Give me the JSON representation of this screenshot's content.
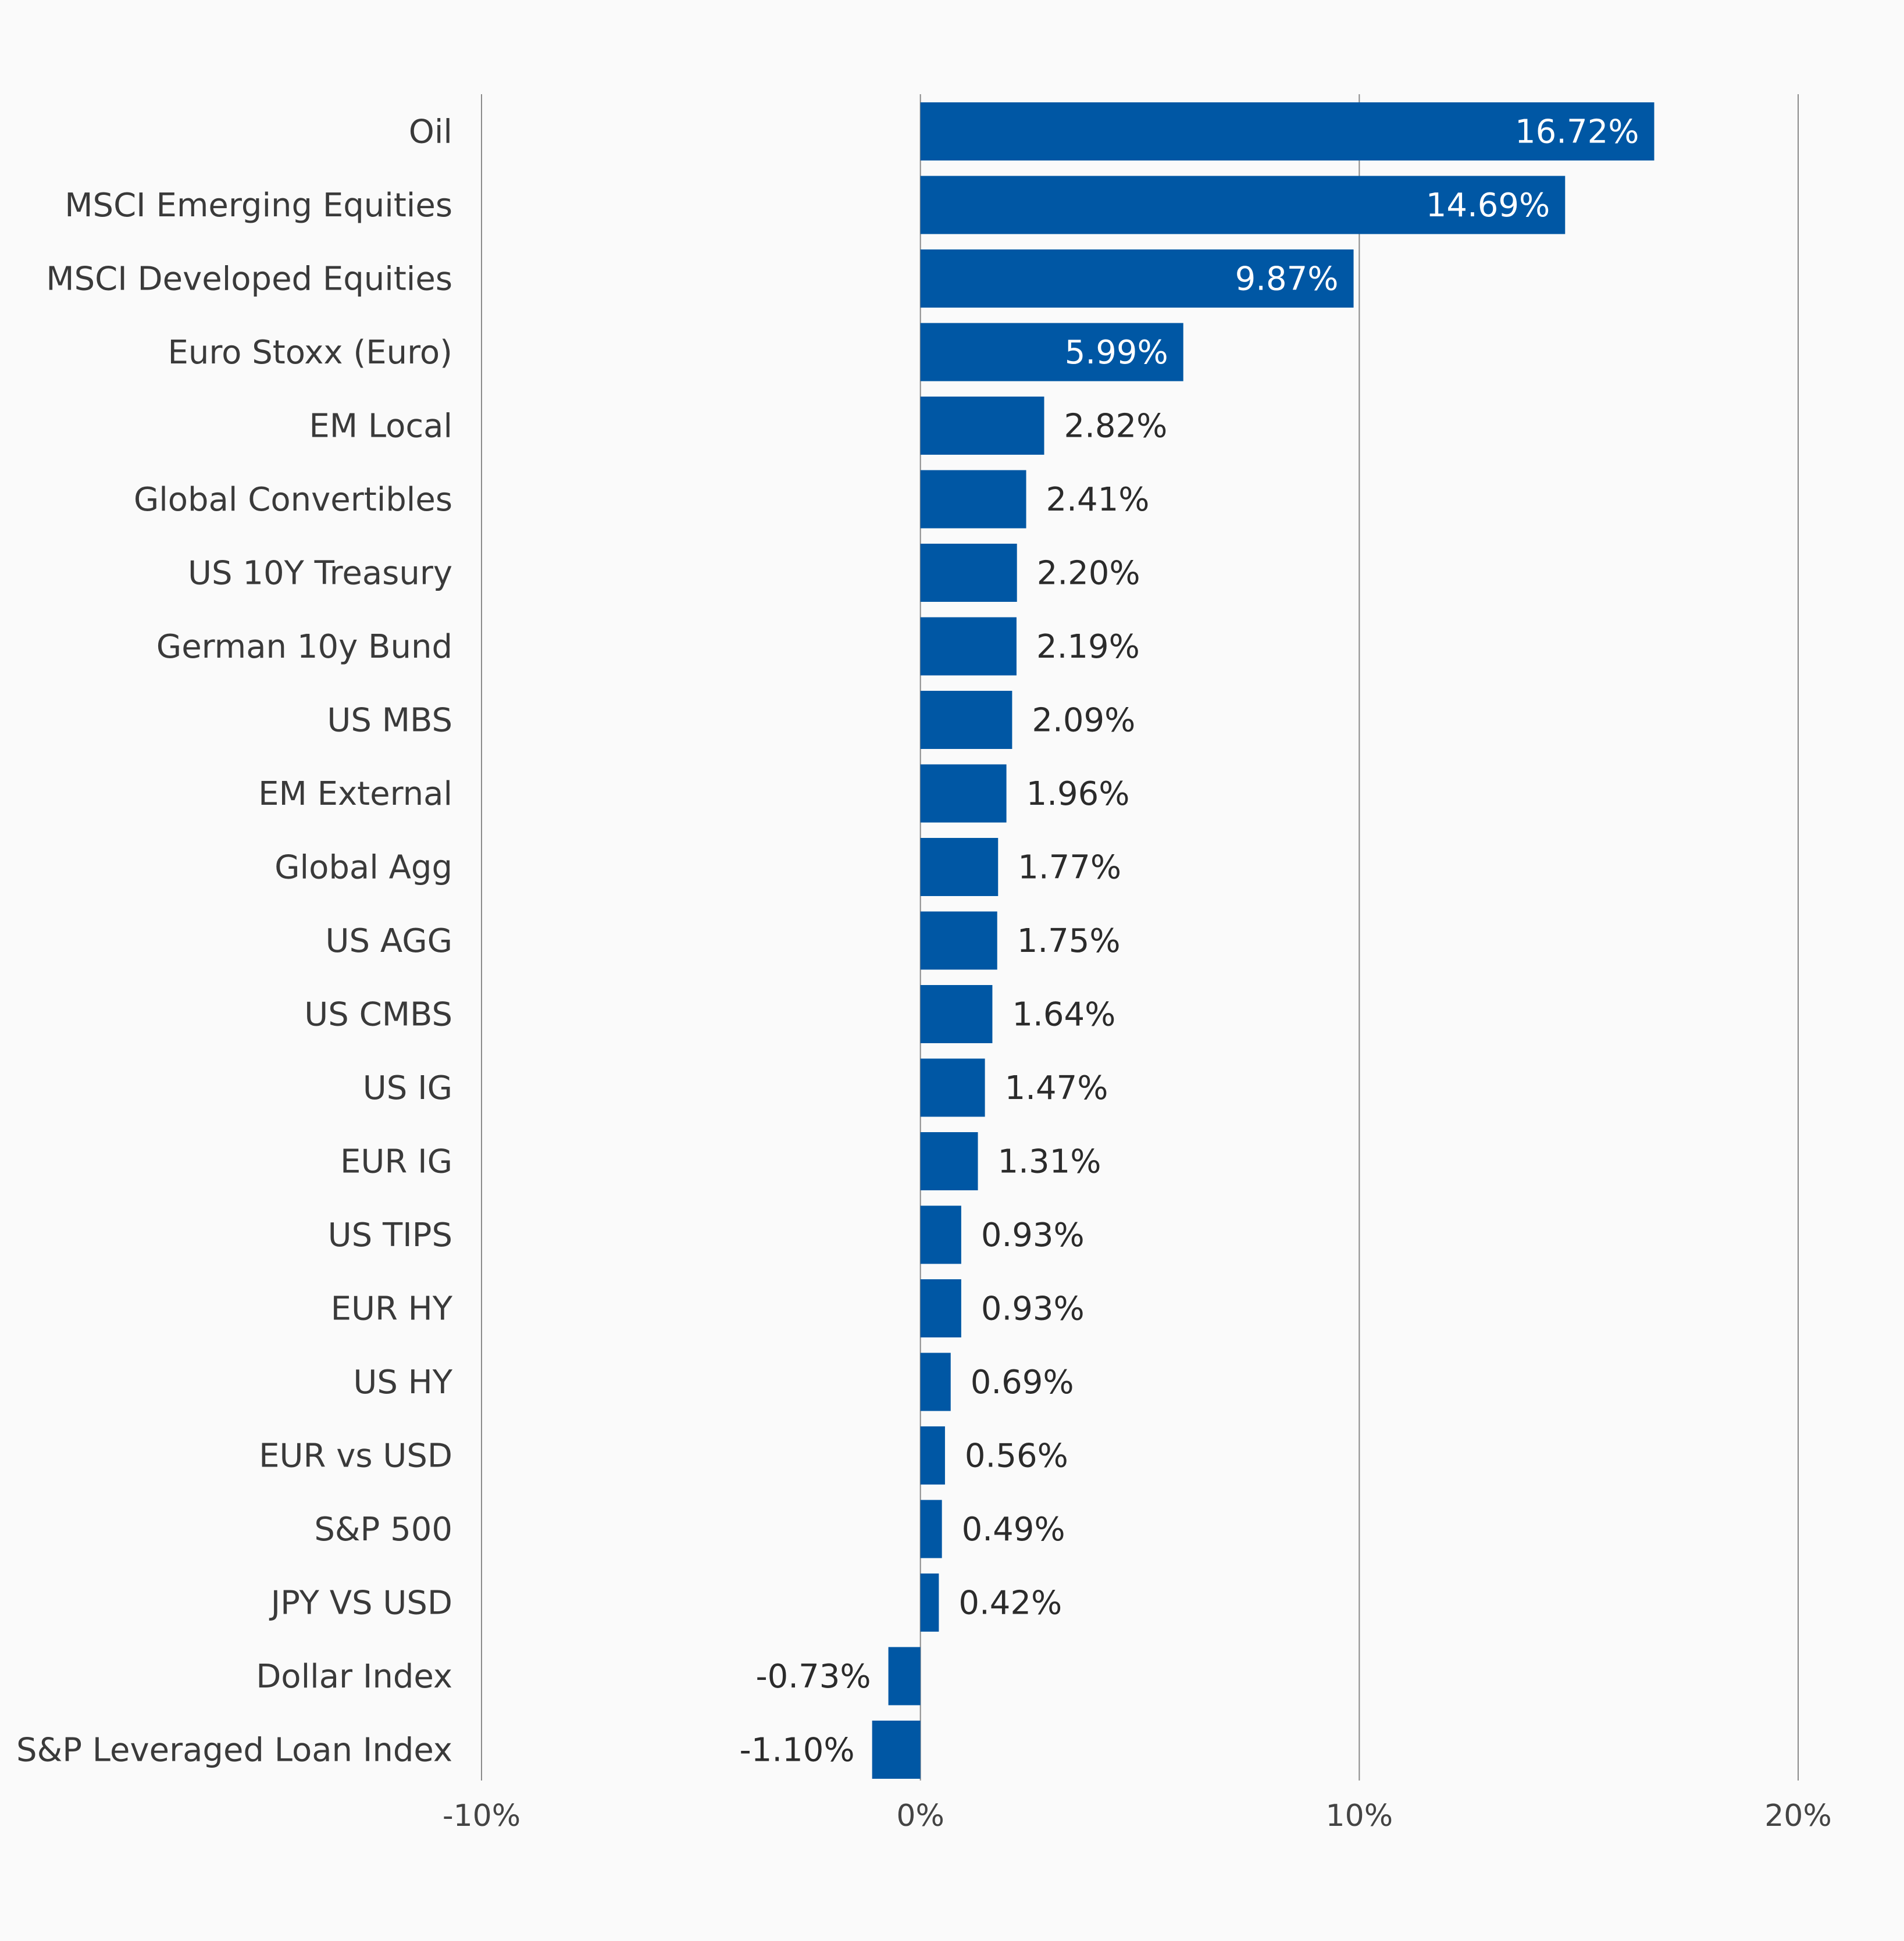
{
  "chart_data": {
    "type": "bar",
    "orientation": "horizontal",
    "title": "",
    "xlabel": "",
    "ylabel": "",
    "xlim": [
      -10,
      20
    ],
    "x_ticks": [
      -10,
      0,
      10,
      20
    ],
    "x_tick_labels": [
      "-10%",
      "0%",
      "10%",
      "20%"
    ],
    "grid": true,
    "legend": "none",
    "categories": [
      "Oil",
      "MSCI Emerging Equities",
      "MSCI Developed Equities",
      "Euro Stoxx (Euro)",
      "EM Local",
      "Global Convertibles",
      "US 10Y Treasury",
      "German 10y Bund",
      "US MBS",
      "EM External",
      "Global Agg",
      "US AGG",
      "US CMBS",
      "US IG",
      "EUR IG",
      "US TIPS",
      "EUR HY",
      "US HY",
      "EUR vs USD",
      "S&P 500",
      "JPY VS USD",
      "Dollar Index",
      "S&P Leveraged Loan Index"
    ],
    "values": [
      16.72,
      14.69,
      9.87,
      5.99,
      2.82,
      2.41,
      2.2,
      2.19,
      2.09,
      1.96,
      1.77,
      1.75,
      1.64,
      1.47,
      1.31,
      0.93,
      0.93,
      0.69,
      0.56,
      0.49,
      0.42,
      -0.73,
      -1.1
    ],
    "data_labels": [
      "16.72%",
      "14.69%",
      "9.87%",
      "5.99%",
      "2.82%",
      "2.41%",
      "2.20%",
      "2.19%",
      "2.09%",
      "1.96%",
      "1.77%",
      "1.75%",
      "1.64%",
      "1.47%",
      "1.31%",
      "0.93%",
      "0.93%",
      "0.69%",
      "0.56%",
      "0.49%",
      "0.42%",
      "-0.73%",
      "-1.10%"
    ],
    "colors": {
      "bar": "#0057a4",
      "label_dark": "#2b2b2b",
      "label_inside": "#ffffff",
      "category_text": "#3a3a3a",
      "tick_text": "#444444",
      "gridline": "#8a8a8a",
      "background": "#fafafa"
    }
  }
}
